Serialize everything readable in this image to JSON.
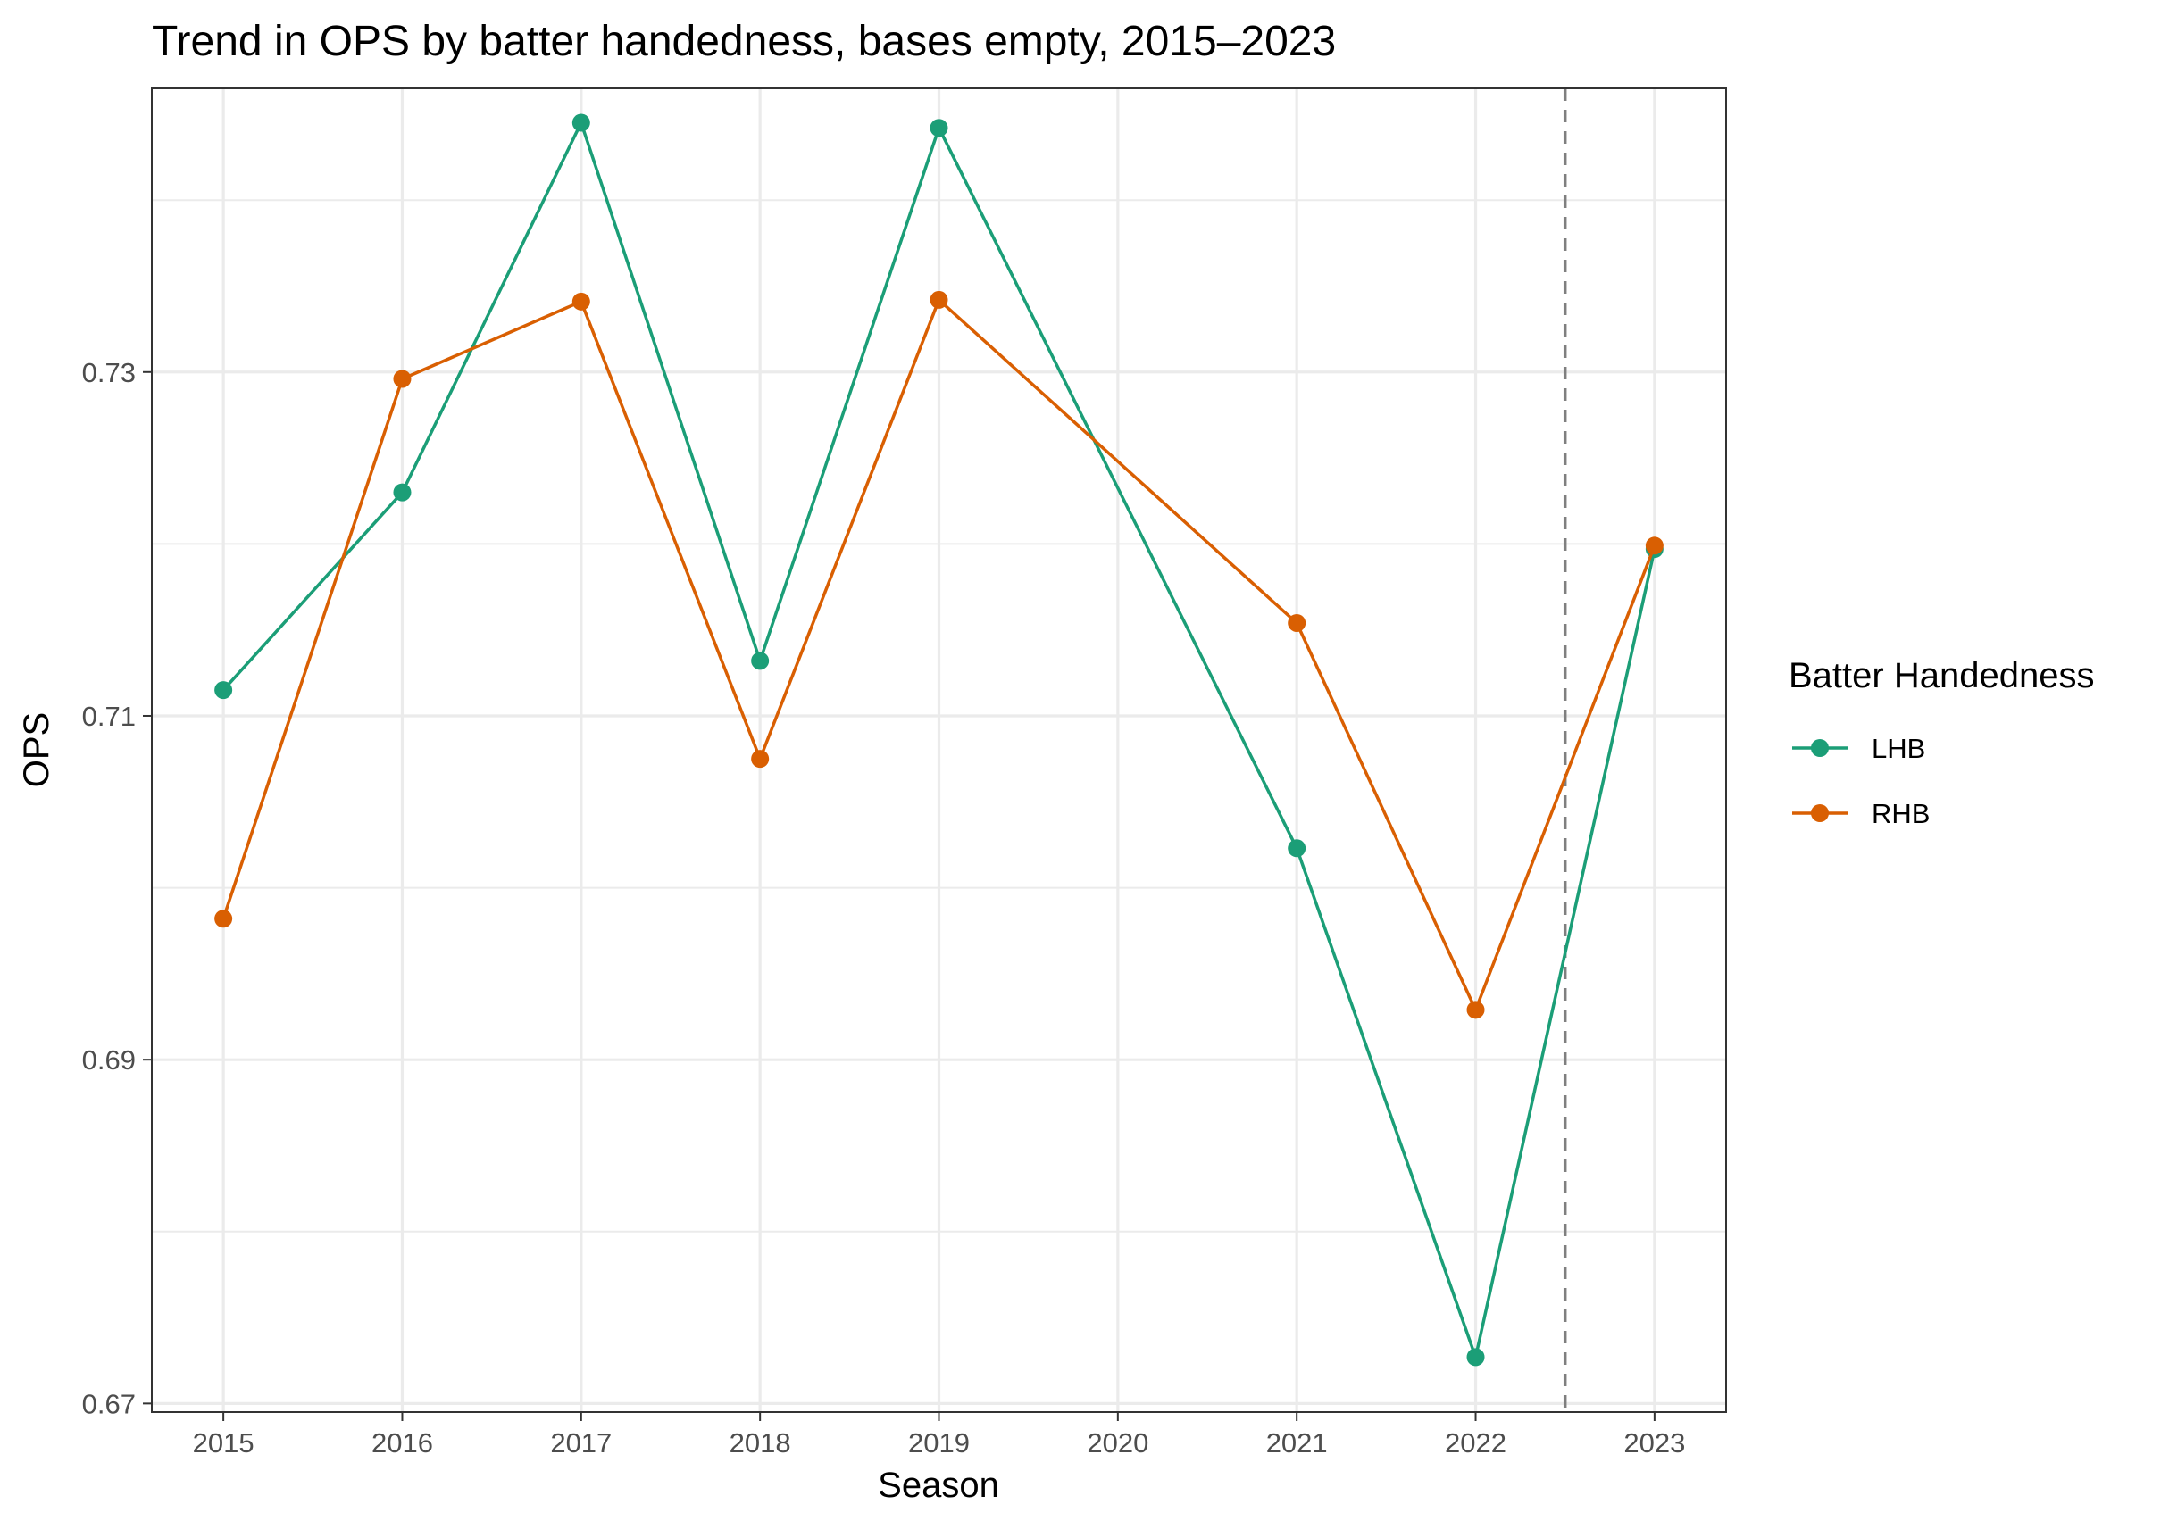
{
  "chart_data": {
    "type": "line",
    "title": "Trend in OPS by batter handedness, bases empty, 2015–2023",
    "xlabel": "Season",
    "ylabel": "OPS",
    "x": [
      2015,
      2016,
      2017,
      2018,
      2019,
      2020,
      2021,
      2022,
      2023
    ],
    "x_ticks": [
      "2015",
      "2016",
      "2017",
      "2018",
      "2019",
      "2020",
      "2021",
      "2022",
      "2023"
    ],
    "y_ticks": [
      "0.67",
      "0.69",
      "0.71",
      "0.73"
    ],
    "xlim": [
      2014.6,
      2023.4
    ],
    "ylim": [
      0.6695,
      0.7465
    ],
    "grid": true,
    "legend_title": "Batter Handedness",
    "legend_position": "right",
    "reference_line": {
      "x": 2022.5,
      "style": "dashed",
      "color": "#7f7f7f"
    },
    "series": [
      {
        "name": "LHB",
        "color": "#1b9e77",
        "x": [
          2015,
          2016,
          2017,
          2018,
          2019,
          2021,
          2022,
          2023
        ],
        "values": [
          0.7115,
          0.723,
          0.7445,
          0.7132,
          0.7442,
          0.7023,
          0.6727,
          0.7197
        ]
      },
      {
        "name": "RHB",
        "color": "#d95f02",
        "x": [
          2015,
          2016,
          2017,
          2018,
          2019,
          2021,
          2022,
          2023
        ],
        "values": [
          0.6982,
          0.7296,
          0.7341,
          0.7075,
          0.7342,
          0.7154,
          0.6929,
          0.7199
        ]
      }
    ]
  }
}
